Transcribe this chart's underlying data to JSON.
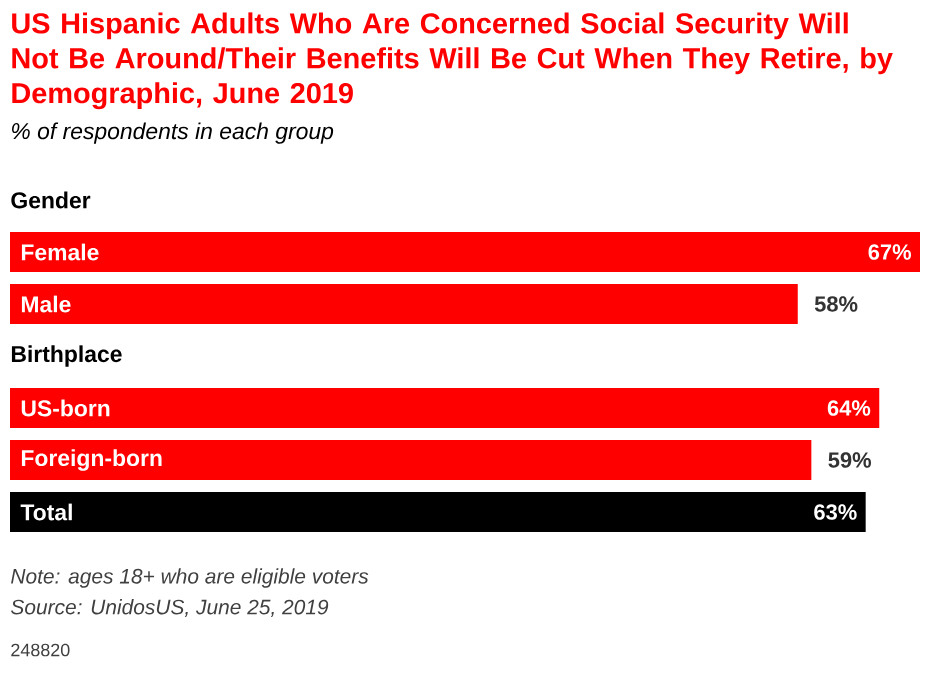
{
  "chart_data": {
    "type": "bar",
    "orientation": "horizontal",
    "title": "US Hispanic Adults Who Are Concerned Social Security Will Not Be Around/Their Benefits Will Be Cut When They Retire, by Demographic, June 2019",
    "subtitle": "% of respondents in each group",
    "categories": [
      "Gender",
      "Female",
      "Male",
      "Birthplace",
      "US-born",
      "Foreign-born",
      "Total"
    ],
    "values": [
      null,
      67,
      58,
      null,
      64,
      59,
      63
    ],
    "value_labels": [
      null,
      "67%",
      "58%",
      null,
      "64%",
      "59%",
      "63%"
    ],
    "colors": [
      null,
      "#ff0000",
      "#ff0000",
      null,
      "#ff0000",
      "#ff0000",
      "#000000"
    ],
    "annotations": [
      "Note: ages 18+ who are eligible voters",
      "Source: UnidosUS, June 25, 2019",
      "248820"
    ]
  }
}
